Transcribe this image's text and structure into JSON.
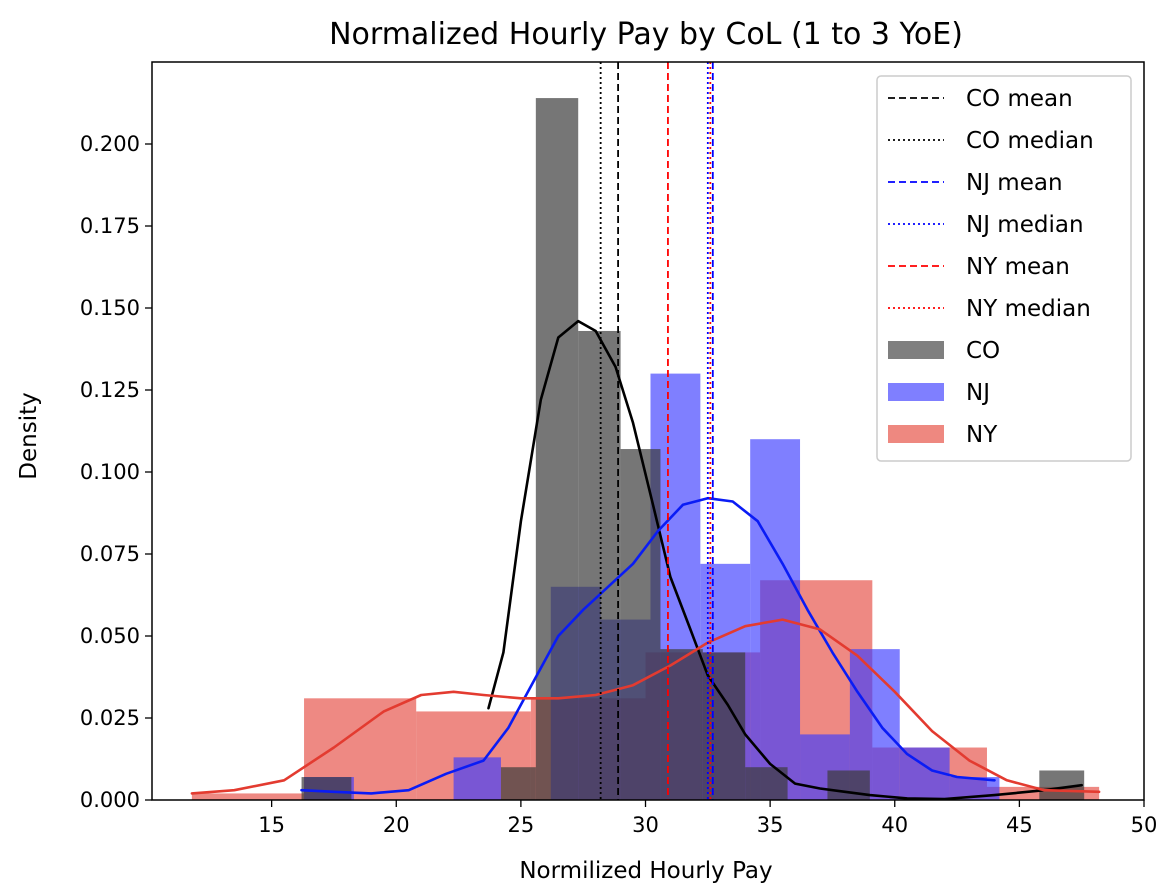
{
  "chart_data": {
    "type": "bar",
    "title": "Normalized Hourly Pay by CoL (1 to 3 YoE)",
    "xlabel": "Normilized Hourly Pay",
    "ylabel": "Density",
    "xlim": [
      10.2,
      50
    ],
    "ylim": [
      0,
      0.225
    ],
    "xticks": [
      15,
      20,
      25,
      30,
      35,
      40,
      45,
      50
    ],
    "yticks": [
      0.0,
      0.025,
      0.05,
      0.075,
      0.1,
      0.125,
      0.15,
      0.175,
      0.2
    ],
    "ytick_labels": [
      "0.000",
      "0.025",
      "0.050",
      "0.075",
      "0.100",
      "0.125",
      "0.150",
      "0.175",
      "0.200"
    ],
    "grid": false,
    "legend_position": "upper right",
    "histograms": [
      {
        "name": "NY",
        "color": "#e33b30",
        "opacity": 0.6,
        "bins": [
          {
            "x0": 11.8,
            "x1": 16.3,
            "density": 0.002
          },
          {
            "x0": 16.3,
            "x1": 20.8,
            "density": 0.031
          },
          {
            "x0": 20.8,
            "x1": 25.4,
            "density": 0.027
          },
          {
            "x0": 25.4,
            "x1": 30.0,
            "density": 0.031
          },
          {
            "x0": 30.0,
            "x1": 34.6,
            "density": 0.045
          },
          {
            "x0": 34.6,
            "x1": 39.1,
            "density": 0.067
          },
          {
            "x0": 39.1,
            "x1": 43.7,
            "density": 0.016
          },
          {
            "x0": 43.7,
            "x1": 48.2,
            "density": 0.004
          }
        ]
      },
      {
        "name": "NJ",
        "color": "#3b3bff",
        "opacity": 0.65,
        "bins": [
          {
            "x0": 16.3,
            "x1": 18.3,
            "density": 0.007
          },
          {
            "x0": 18.3,
            "x1": 20.3,
            "density": 0.0
          },
          {
            "x0": 20.3,
            "x1": 22.3,
            "density": 0.0
          },
          {
            "x0": 22.3,
            "x1": 24.2,
            "density": 0.013
          },
          {
            "x0": 24.2,
            "x1": 26.2,
            "density": 0.0
          },
          {
            "x0": 26.2,
            "x1": 28.2,
            "density": 0.065
          },
          {
            "x0": 28.2,
            "x1": 30.2,
            "density": 0.055
          },
          {
            "x0": 30.2,
            "x1": 32.2,
            "density": 0.13
          },
          {
            "x0": 32.2,
            "x1": 34.2,
            "density": 0.072
          },
          {
            "x0": 34.2,
            "x1": 36.2,
            "density": 0.11
          },
          {
            "x0": 36.2,
            "x1": 38.2,
            "density": 0.02
          },
          {
            "x0": 38.2,
            "x1": 40.2,
            "density": 0.046
          },
          {
            "x0": 40.2,
            "x1": 42.2,
            "density": 0.016
          },
          {
            "x0": 42.2,
            "x1": 44.2,
            "density": 0.007
          }
        ]
      },
      {
        "name": "CO",
        "color": "#3c3c3c",
        "opacity": 0.7,
        "bins": [
          {
            "x0": 16.2,
            "x1": 18.2,
            "density": 0.007
          },
          {
            "x0": 18.2,
            "x1": 20.2,
            "density": 0.0
          },
          {
            "x0": 20.2,
            "x1": 22.2,
            "density": 0.0
          },
          {
            "x0": 22.2,
            "x1": 24.2,
            "density": 0.0
          },
          {
            "x0": 24.2,
            "x1": 25.6,
            "density": 0.01
          },
          {
            "x0": 25.6,
            "x1": 27.3,
            "density": 0.214
          },
          {
            "x0": 27.3,
            "x1": 29.0,
            "density": 0.143
          },
          {
            "x0": 29.0,
            "x1": 30.6,
            "density": 0.107
          },
          {
            "x0": 30.6,
            "x1": 32.3,
            "density": 0.046
          },
          {
            "x0": 32.3,
            "x1": 34.0,
            "density": 0.045
          },
          {
            "x0": 34.0,
            "x1": 35.7,
            "density": 0.01
          },
          {
            "x0": 35.7,
            "x1": 37.3,
            "density": 0.0
          },
          {
            "x0": 37.3,
            "x1": 39.0,
            "density": 0.009
          },
          {
            "x0": 39.0,
            "x1": 45.8,
            "density": 0.0
          },
          {
            "x0": 45.8,
            "x1": 47.6,
            "density": 0.009
          }
        ]
      }
    ],
    "kde_series": [
      {
        "name": "CO",
        "color": "#000000",
        "points": [
          [
            23.7,
            0.028
          ],
          [
            24.3,
            0.045
          ],
          [
            25.0,
            0.085
          ],
          [
            25.8,
            0.122
          ],
          [
            26.5,
            0.141
          ],
          [
            27.3,
            0.146
          ],
          [
            28.0,
            0.143
          ],
          [
            28.8,
            0.132
          ],
          [
            29.5,
            0.115
          ],
          [
            30.3,
            0.09
          ],
          [
            31.0,
            0.068
          ],
          [
            31.8,
            0.052
          ],
          [
            32.5,
            0.038
          ],
          [
            33.3,
            0.029
          ],
          [
            34.0,
            0.02
          ],
          [
            35.0,
            0.011
          ],
          [
            36.0,
            0.005
          ],
          [
            37.0,
            0.0035
          ],
          [
            38.0,
            0.0025
          ],
          [
            39.0,
            0.0015
          ],
          [
            40.5,
            0.0005
          ],
          [
            42.0,
            0.0003
          ],
          [
            44.0,
            0.0015
          ],
          [
            46.0,
            0.003
          ],
          [
            47.5,
            0.0045
          ]
        ]
      },
      {
        "name": "NJ",
        "color": "#0a1cf5",
        "points": [
          [
            16.2,
            0.003
          ],
          [
            17.5,
            0.0025
          ],
          [
            19.0,
            0.002
          ],
          [
            20.5,
            0.003
          ],
          [
            22.0,
            0.008
          ],
          [
            23.5,
            0.012
          ],
          [
            24.5,
            0.022
          ],
          [
            25.5,
            0.036
          ],
          [
            26.5,
            0.05
          ],
          [
            27.5,
            0.058
          ],
          [
            28.5,
            0.065
          ],
          [
            29.5,
            0.072
          ],
          [
            30.5,
            0.082
          ],
          [
            31.5,
            0.09
          ],
          [
            32.5,
            0.092
          ],
          [
            33.5,
            0.091
          ],
          [
            34.5,
            0.085
          ],
          [
            35.5,
            0.072
          ],
          [
            36.5,
            0.058
          ],
          [
            37.5,
            0.045
          ],
          [
            38.5,
            0.033
          ],
          [
            39.5,
            0.022
          ],
          [
            40.5,
            0.014
          ],
          [
            41.5,
            0.009
          ],
          [
            42.5,
            0.007
          ],
          [
            44.0,
            0.006
          ]
        ]
      },
      {
        "name": "NY",
        "color": "#e33b30",
        "points": [
          [
            11.8,
            0.002
          ],
          [
            13.5,
            0.003
          ],
          [
            15.5,
            0.006
          ],
          [
            17.5,
            0.016
          ],
          [
            19.5,
            0.027
          ],
          [
            21.0,
            0.032
          ],
          [
            22.3,
            0.033
          ],
          [
            23.5,
            0.032
          ],
          [
            25.0,
            0.031
          ],
          [
            26.5,
            0.031
          ],
          [
            28.0,
            0.032
          ],
          [
            29.5,
            0.035
          ],
          [
            31.0,
            0.041
          ],
          [
            32.5,
            0.048
          ],
          [
            34.0,
            0.053
          ],
          [
            35.5,
            0.055
          ],
          [
            37.0,
            0.052
          ],
          [
            38.5,
            0.044
          ],
          [
            40.0,
            0.033
          ],
          [
            41.5,
            0.021
          ],
          [
            43.0,
            0.012
          ],
          [
            44.5,
            0.006
          ],
          [
            46.0,
            0.003
          ],
          [
            48.2,
            0.0025
          ]
        ]
      }
    ],
    "reference_lines": [
      {
        "name": "CO mean",
        "x": 28.9,
        "color": "#000000",
        "style": "dashed"
      },
      {
        "name": "CO median",
        "x": 28.2,
        "color": "#000000",
        "style": "dotted"
      },
      {
        "name": "NJ mean",
        "x": 32.7,
        "color": "#0000ff",
        "style": "dashed"
      },
      {
        "name": "NJ median",
        "x": 32.5,
        "color": "#0000ff",
        "style": "dotted"
      },
      {
        "name": "NY mean",
        "x": 30.9,
        "color": "#ff0000",
        "style": "dashed"
      },
      {
        "name": "NY median",
        "x": 32.6,
        "color": "#ff0000",
        "style": "dotted"
      }
    ],
    "legend": [
      {
        "label": "CO mean",
        "kind": "line",
        "color": "#000000",
        "style": "dashed"
      },
      {
        "label": "CO median",
        "kind": "line",
        "color": "#000000",
        "style": "dotted"
      },
      {
        "label": "NJ mean",
        "kind": "line",
        "color": "#0000ff",
        "style": "dashed"
      },
      {
        "label": "NJ median",
        "kind": "line",
        "color": "#0000ff",
        "style": "dotted"
      },
      {
        "label": "NY mean",
        "kind": "line",
        "color": "#ff0000",
        "style": "dashed"
      },
      {
        "label": "NY median",
        "kind": "line",
        "color": "#ff0000",
        "style": "dotted"
      },
      {
        "label": "CO",
        "kind": "patch",
        "color": "#7f7f7f"
      },
      {
        "label": "NJ",
        "kind": "patch",
        "color": "#7f7fff"
      },
      {
        "label": "NY",
        "kind": "patch",
        "color": "#ee8880"
      }
    ]
  }
}
